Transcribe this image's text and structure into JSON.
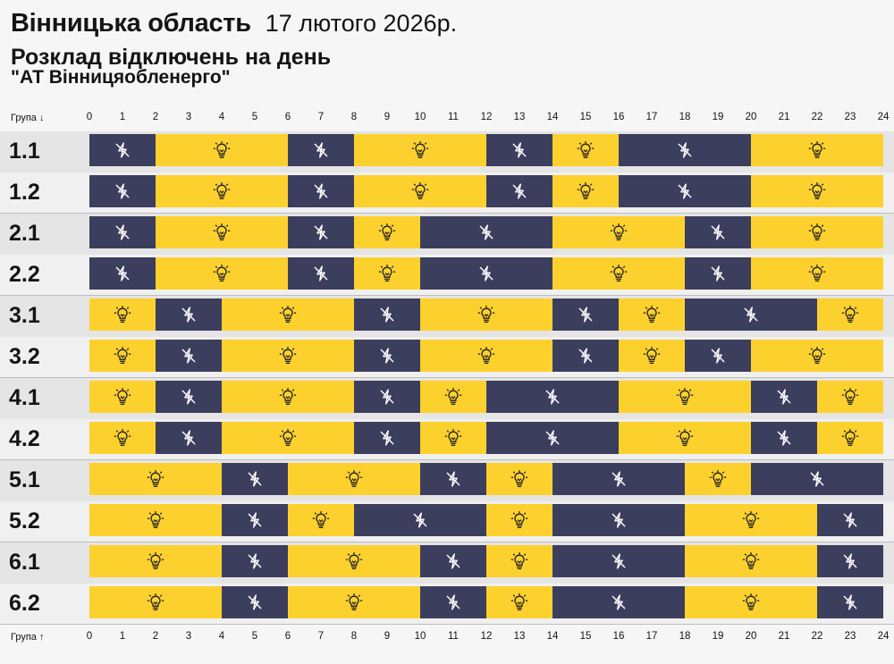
{
  "header": {
    "region": "Вінницька область",
    "date": "17 лютого 2026р.",
    "subtitle": "Розклад відключень на день",
    "company": "\"АТ Вінницяобленерго\""
  },
  "axis_top_label": "Група ↓",
  "axis_bottom_label": "Група ↑",
  "colors": {
    "power_on": "#fcd12e",
    "power_off": "#3c3e5e"
  },
  "icons": {
    "power_on": "lightbulb-icon",
    "power_off": "no-power-icon"
  },
  "chart_data": {
    "type": "table",
    "x_unit": "hour",
    "xlim": [
      0,
      24
    ],
    "ticks": [
      0,
      1,
      2,
      3,
      4,
      5,
      6,
      7,
      8,
      9,
      10,
      11,
      12,
      13,
      14,
      15,
      16,
      17,
      18,
      19,
      20,
      21,
      22,
      23,
      24
    ],
    "legend_states": [
      "on",
      "off"
    ],
    "rows": [
      {
        "group": "1.1",
        "segments": [
          [
            0,
            2,
            "off"
          ],
          [
            2,
            6,
            "on"
          ],
          [
            6,
            8,
            "off"
          ],
          [
            8,
            12,
            "on"
          ],
          [
            12,
            14,
            "off"
          ],
          [
            14,
            16,
            "on"
          ],
          [
            16,
            20,
            "off"
          ],
          [
            20,
            24,
            "on"
          ]
        ]
      },
      {
        "group": "1.2",
        "segments": [
          [
            0,
            2,
            "off"
          ],
          [
            2,
            6,
            "on"
          ],
          [
            6,
            8,
            "off"
          ],
          [
            8,
            12,
            "on"
          ],
          [
            12,
            14,
            "off"
          ],
          [
            14,
            16,
            "on"
          ],
          [
            16,
            20,
            "off"
          ],
          [
            20,
            24,
            "on"
          ]
        ]
      },
      {
        "group": "2.1",
        "segments": [
          [
            0,
            2,
            "off"
          ],
          [
            2,
            6,
            "on"
          ],
          [
            6,
            8,
            "off"
          ],
          [
            8,
            10,
            "on"
          ],
          [
            10,
            14,
            "off"
          ],
          [
            14,
            18,
            "on"
          ],
          [
            18,
            20,
            "off"
          ],
          [
            20,
            24,
            "on"
          ]
        ]
      },
      {
        "group": "2.2",
        "segments": [
          [
            0,
            2,
            "off"
          ],
          [
            2,
            6,
            "on"
          ],
          [
            6,
            8,
            "off"
          ],
          [
            8,
            10,
            "on"
          ],
          [
            10,
            14,
            "off"
          ],
          [
            14,
            18,
            "on"
          ],
          [
            18,
            20,
            "off"
          ],
          [
            20,
            24,
            "on"
          ]
        ]
      },
      {
        "group": "3.1",
        "segments": [
          [
            0,
            2,
            "on"
          ],
          [
            2,
            4,
            "off"
          ],
          [
            4,
            8,
            "on"
          ],
          [
            8,
            10,
            "off"
          ],
          [
            10,
            14,
            "on"
          ],
          [
            14,
            16,
            "off"
          ],
          [
            16,
            18,
            "on"
          ],
          [
            18,
            22,
            "off"
          ],
          [
            22,
            24,
            "on"
          ]
        ]
      },
      {
        "group": "3.2",
        "segments": [
          [
            0,
            2,
            "on"
          ],
          [
            2,
            4,
            "off"
          ],
          [
            4,
            8,
            "on"
          ],
          [
            8,
            10,
            "off"
          ],
          [
            10,
            14,
            "on"
          ],
          [
            14,
            16,
            "off"
          ],
          [
            16,
            18,
            "on"
          ],
          [
            18,
            20,
            "off"
          ],
          [
            20,
            24,
            "on"
          ]
        ]
      },
      {
        "group": "4.1",
        "segments": [
          [
            0,
            2,
            "on"
          ],
          [
            2,
            4,
            "off"
          ],
          [
            4,
            8,
            "on"
          ],
          [
            8,
            10,
            "off"
          ],
          [
            10,
            12,
            "on"
          ],
          [
            12,
            16,
            "off"
          ],
          [
            16,
            20,
            "on"
          ],
          [
            20,
            22,
            "off"
          ],
          [
            22,
            24,
            "on"
          ]
        ]
      },
      {
        "group": "4.2",
        "segments": [
          [
            0,
            2,
            "on"
          ],
          [
            2,
            4,
            "off"
          ],
          [
            4,
            8,
            "on"
          ],
          [
            8,
            10,
            "off"
          ],
          [
            10,
            12,
            "on"
          ],
          [
            12,
            16,
            "off"
          ],
          [
            16,
            20,
            "on"
          ],
          [
            20,
            22,
            "off"
          ],
          [
            22,
            24,
            "on"
          ]
        ]
      },
      {
        "group": "5.1",
        "segments": [
          [
            0,
            4,
            "on"
          ],
          [
            4,
            6,
            "off"
          ],
          [
            6,
            10,
            "on"
          ],
          [
            10,
            12,
            "off"
          ],
          [
            12,
            14,
            "on"
          ],
          [
            14,
            18,
            "off"
          ],
          [
            18,
            20,
            "on"
          ],
          [
            20,
            24,
            "off"
          ]
        ]
      },
      {
        "group": "5.2",
        "segments": [
          [
            0,
            4,
            "on"
          ],
          [
            4,
            6,
            "off"
          ],
          [
            6,
            8,
            "on"
          ],
          [
            8,
            12,
            "off"
          ],
          [
            12,
            14,
            "on"
          ],
          [
            14,
            18,
            "off"
          ],
          [
            18,
            22,
            "on"
          ],
          [
            22,
            24,
            "off"
          ]
        ]
      },
      {
        "group": "6.1",
        "segments": [
          [
            0,
            4,
            "on"
          ],
          [
            4,
            6,
            "off"
          ],
          [
            6,
            10,
            "on"
          ],
          [
            10,
            12,
            "off"
          ],
          [
            12,
            14,
            "on"
          ],
          [
            14,
            18,
            "off"
          ],
          [
            18,
            22,
            "on"
          ],
          [
            22,
            24,
            "off"
          ]
        ]
      },
      {
        "group": "6.2",
        "segments": [
          [
            0,
            4,
            "on"
          ],
          [
            4,
            6,
            "off"
          ],
          [
            6,
            10,
            "on"
          ],
          [
            10,
            12,
            "off"
          ],
          [
            12,
            14,
            "on"
          ],
          [
            14,
            18,
            "off"
          ],
          [
            18,
            22,
            "on"
          ],
          [
            22,
            24,
            "off"
          ]
        ]
      }
    ]
  }
}
